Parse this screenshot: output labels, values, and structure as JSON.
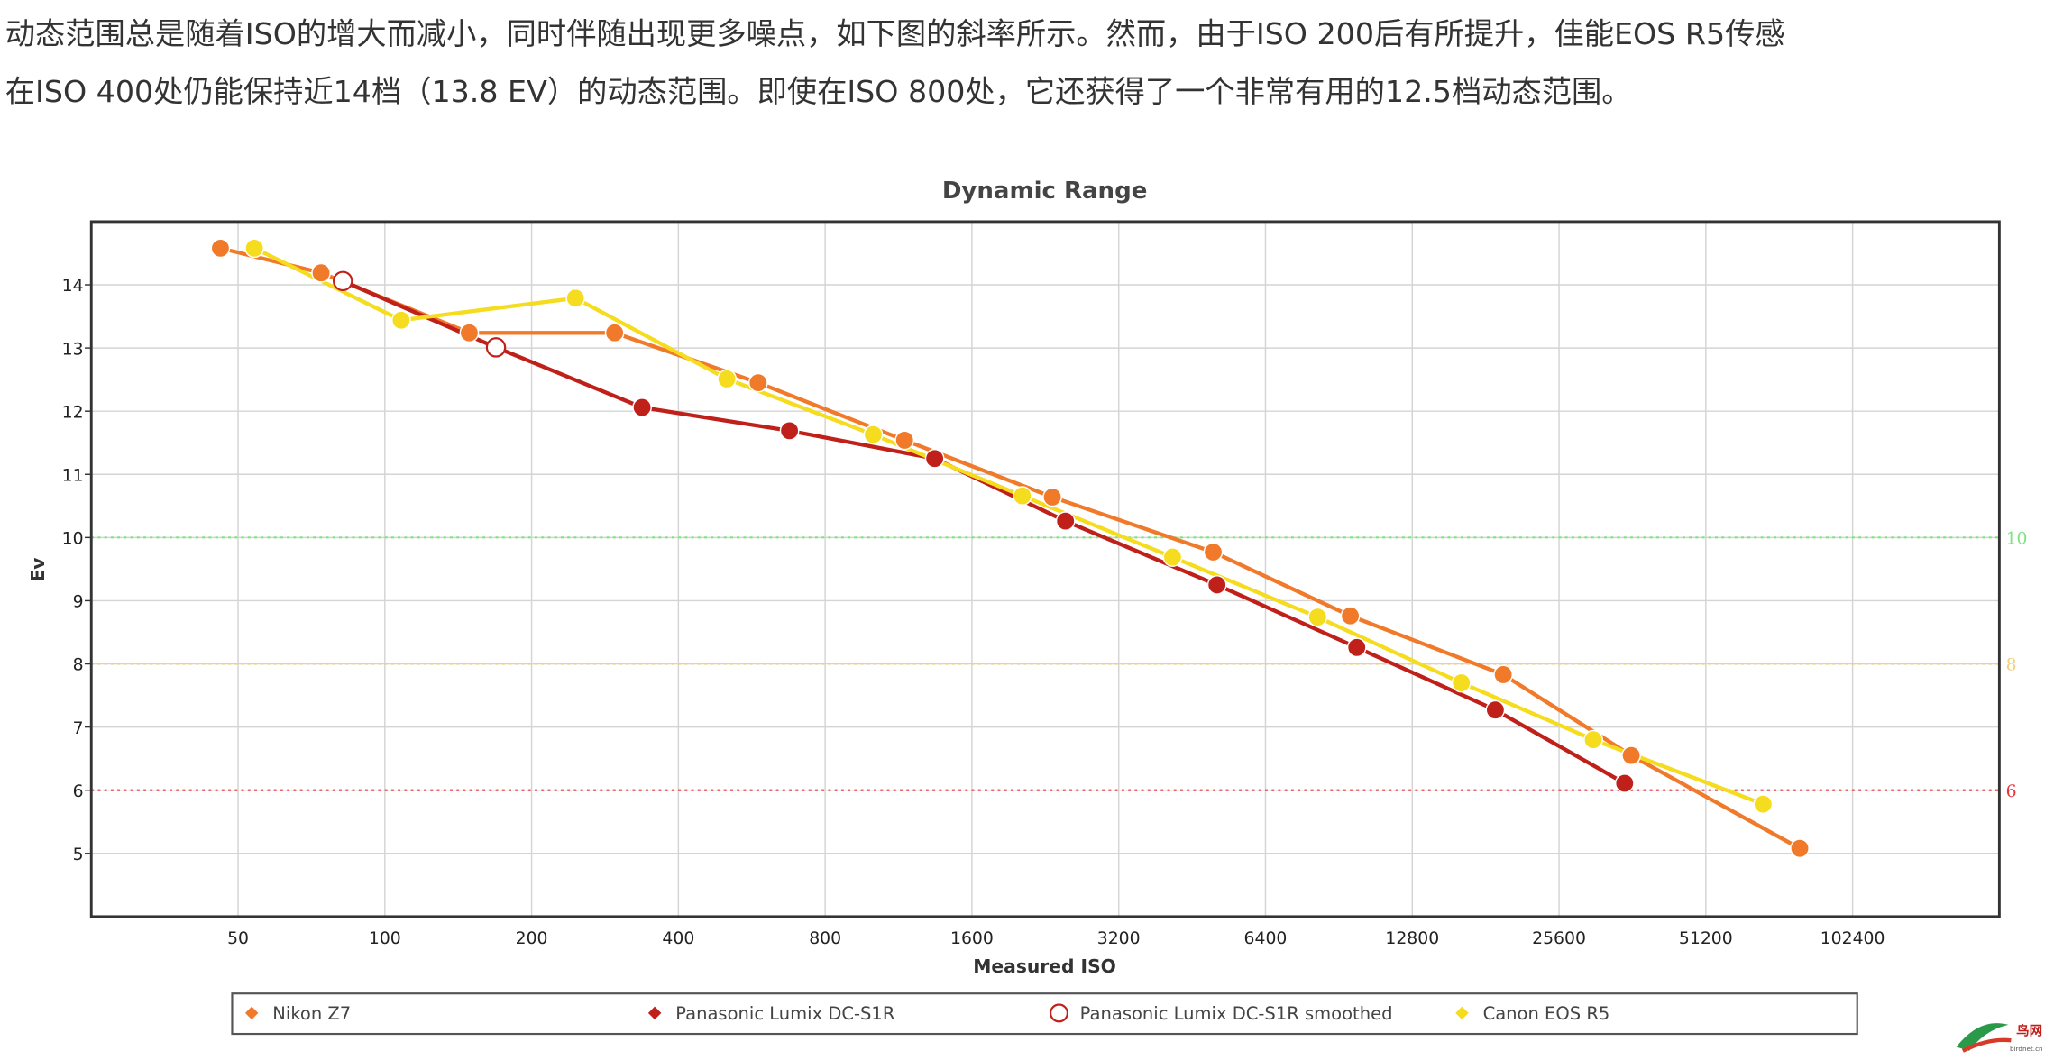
{
  "text": {
    "lines": [
      "动态范围总是随着ISO的增大而减小，同时伴随出现更多噪点，如下图的斜率所示。然而，由于ISO 200后有所提升，佳能EOS R5传感",
      "在ISO 400处仍能保持近14档（13.8 EV）的动态范围。即使在ISO 800处，它还获得了一个非常有用的12.5档动态范围。"
    ],
    "watermark": "鸟网",
    "watermark_url": "birdnet.cn"
  },
  "chart_data": {
    "type": "line",
    "title": "Dynamic Range",
    "x_label": "Measured ISO",
    "y_label": "Ev",
    "x_scale": "log",
    "xlim": [
      25,
      204800
    ],
    "xticks": [
      50,
      100,
      200,
      400,
      800,
      1600,
      3200,
      6400,
      12800,
      25600,
      51200,
      102400
    ],
    "ylim": [
      4,
      15
    ],
    "yticks": [
      5,
      6,
      7,
      8,
      9,
      10,
      11,
      12,
      13,
      14
    ],
    "grid": true,
    "reference_lines": [
      {
        "value": 10,
        "color": "#7fe37f"
      },
      {
        "value": 8,
        "color": "#f3cf7a"
      },
      {
        "value": 6,
        "color": "#e8343a"
      }
    ],
    "series": [
      {
        "name": "Nikon Z7",
        "color": "#f07a2a",
        "marker": "circle",
        "show_line": true,
        "x": [
          46,
          74,
          149,
          296,
          583,
          1164,
          2339,
          5000,
          9555,
          19670,
          36000,
          79800
        ],
        "values": [
          14.58,
          14.19,
          13.24,
          13.24,
          12.45,
          11.54,
          10.64,
          9.77,
          8.76,
          7.83,
          6.55,
          5.08
        ]
      },
      {
        "name": "Panasonic Lumix DC-S1R",
        "color": "#c0201a",
        "marker": "circle",
        "show_line": true,
        "x": [
          82,
          169,
          337,
          676,
          1342,
          2489,
          5090,
          9850,
          18950,
          34900
        ],
        "values": [
          14.06,
          13.01,
          12.06,
          11.69,
          11.25,
          10.26,
          9.25,
          8.26,
          7.27,
          6.11
        ]
      },
      {
        "name": "Panasonic Lumix DC-S1R smoothed",
        "color": "#c0201a",
        "marker": "hollow-circle",
        "show_line": false,
        "x": [
          82,
          169
        ],
        "values": [
          14.06,
          13.01
        ]
      },
      {
        "name": "Canon EOS R5",
        "color": "#f5dc1e",
        "marker": "circle",
        "show_line": true,
        "x": [
          54,
          108,
          246,
          503,
          1004,
          2030,
          4127,
          8187,
          16140,
          30100,
          67100
        ],
        "values": [
          14.58,
          13.44,
          13.79,
          12.51,
          11.63,
          10.66,
          9.69,
          8.74,
          7.7,
          6.8,
          5.78
        ]
      }
    ],
    "legend": "bottom"
  }
}
